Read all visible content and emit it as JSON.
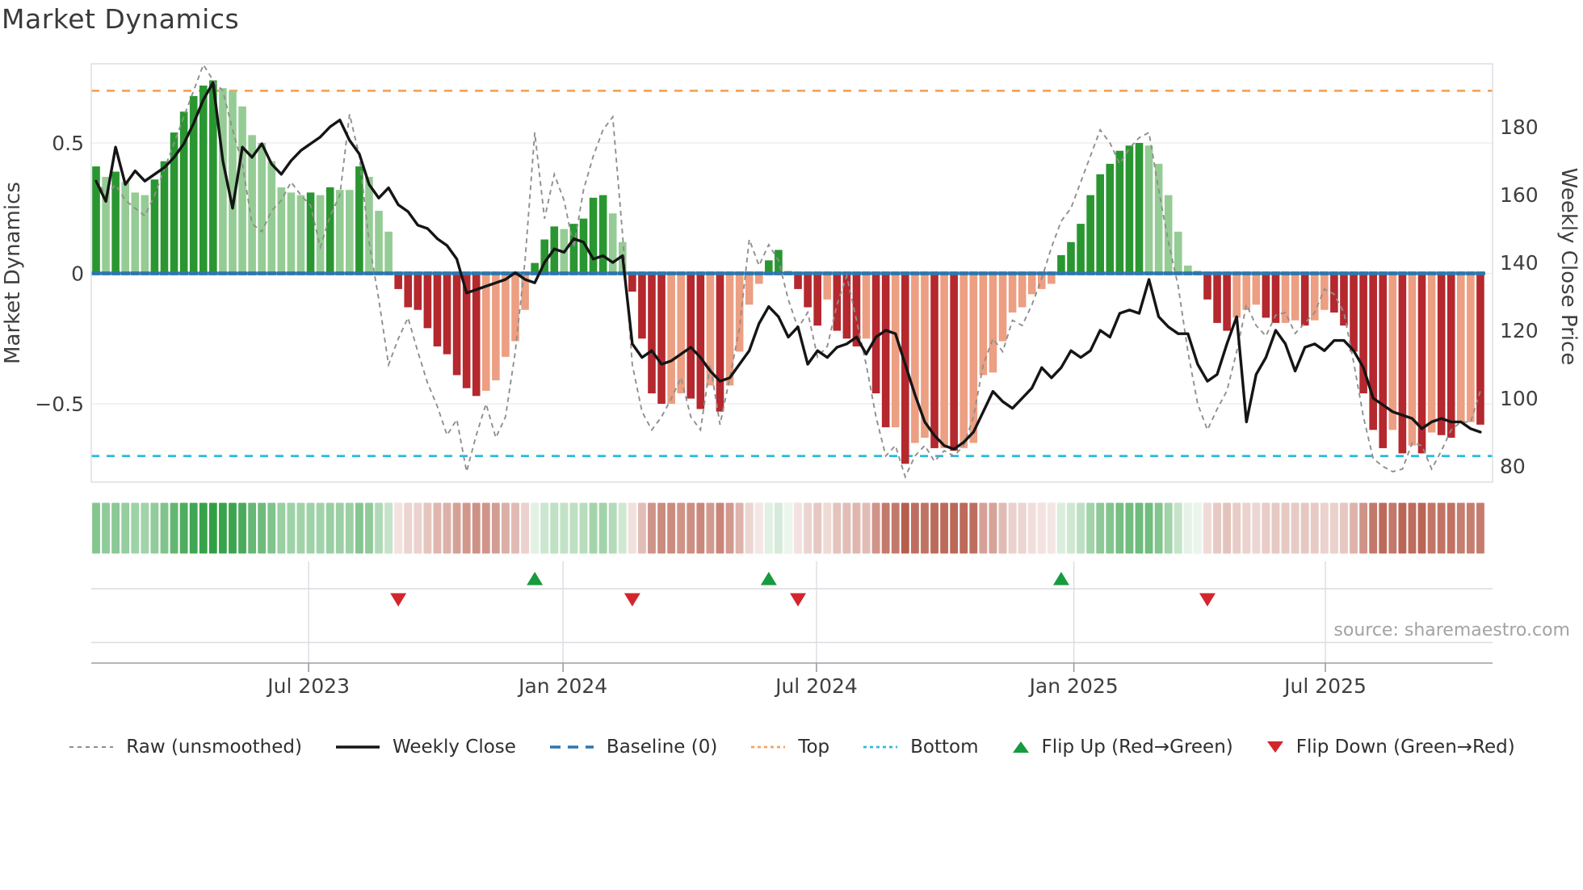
{
  "title": "Market Dynamics",
  "source_text": "source: sharemaestro.com",
  "legend": {
    "items": [
      {
        "label": "Raw (unsmoothed)"
      },
      {
        "label": "Weekly Close"
      },
      {
        "label": "Baseline (0)"
      },
      {
        "label": "Top"
      },
      {
        "label": "Bottom"
      },
      {
        "label": "Flip Up (Red→Green)"
      },
      {
        "label": "Flip Down (Green→Red)"
      }
    ]
  },
  "colors": {
    "bar_green_dark": "#2a9631",
    "bar_green_light": "#95cc95",
    "bar_red_dark": "#b4282e",
    "bar_red_light": "#ec9f82",
    "close_line": "#151515",
    "raw_line": "#8f8f8f",
    "baseline": "#2f76ac",
    "top_line": "#f2a55e",
    "bottom_line": "#2bbcdc",
    "flip_up": "#189a3e",
    "flip_down": "#d2262c",
    "grid": "#e9e9f0",
    "spine": "#dcdce4",
    "panel_grid": "#dadae0",
    "panel_axis": "#9d9da4",
    "tick_text": "#3f3f3f",
    "heat_pos": "#2f9e43",
    "heat_pos_base": "#edf6ed",
    "heat_neg": "#b55a49",
    "heat_neg_base": "#f8eeec"
  },
  "chart_data": {
    "type": "bar",
    "title": "Market Dynamics",
    "ylabel_left": "Market Dynamics",
    "ylabel_right": "Weekly Close Price",
    "ylim_left": [
      -0.8,
      0.8
    ],
    "left_ticks": [
      {
        "v": 0.5,
        "label": "0.5"
      },
      {
        "v": 0.0,
        "label": "0"
      },
      {
        "v": -0.5,
        "label": "−0.5"
      }
    ],
    "right_ticks": [
      {
        "p": 180,
        "label": "180"
      },
      {
        "p": 160,
        "label": "160"
      },
      {
        "p": 140,
        "label": "140"
      },
      {
        "p": 120,
        "label": "120"
      },
      {
        "p": 100,
        "label": "100"
      },
      {
        "p": 80,
        "label": "80"
      }
    ],
    "x_ticks": [
      {
        "label": "Jul 2023",
        "week": 21.8
      },
      {
        "label": "Jan 2024",
        "week": 47.9
      },
      {
        "label": "Jul 2024",
        "week": 73.9
      },
      {
        "label": "Jan 2025",
        "week": 100.3
      },
      {
        "label": "Jul 2025",
        "week": 126.1
      }
    ],
    "thresholds": {
      "baseline": 0,
      "top": 0.7,
      "bottom": -0.7
    },
    "flips": {
      "up_weeks": [
        45,
        69,
        99
      ],
      "down_weeks": [
        31,
        55,
        72,
        114
      ]
    },
    "series": [
      {
        "name": "Market Dynamics (smoothed bars)",
        "values": [
          0.41,
          0.37,
          0.39,
          0.35,
          0.31,
          0.3,
          0.36,
          0.43,
          0.54,
          0.62,
          0.68,
          0.72,
          0.74,
          0.71,
          0.7,
          0.64,
          0.53,
          0.5,
          0.43,
          0.33,
          0.31,
          0.3,
          0.31,
          0.3,
          0.33,
          0.32,
          0.32,
          0.41,
          0.37,
          0.24,
          0.16,
          -0.06,
          -0.13,
          -0.14,
          -0.21,
          -0.28,
          -0.31,
          -0.39,
          -0.44,
          -0.47,
          -0.45,
          -0.41,
          -0.32,
          -0.26,
          -0.14,
          0.04,
          0.13,
          0.18,
          0.17,
          0.19,
          0.21,
          0.29,
          0.3,
          0.23,
          0.12,
          -0.07,
          -0.25,
          -0.46,
          -0.5,
          -0.5,
          -0.46,
          -0.48,
          -0.52,
          -0.43,
          -0.53,
          -0.43,
          -0.3,
          -0.12,
          -0.04,
          0.05,
          0.09,
          0.01,
          -0.06,
          -0.13,
          -0.2,
          -0.1,
          -0.22,
          -0.25,
          -0.28,
          -0.25,
          -0.46,
          -0.59,
          -0.59,
          -0.73,
          -0.65,
          -0.63,
          -0.67,
          -0.67,
          -0.68,
          -0.67,
          -0.65,
          -0.39,
          -0.38,
          -0.26,
          -0.15,
          -0.13,
          -0.08,
          -0.06,
          -0.04,
          0.07,
          0.12,
          0.19,
          0.3,
          0.38,
          0.42,
          0.47,
          0.49,
          0.5,
          0.49,
          0.42,
          0.3,
          0.16,
          0.03,
          0.01,
          -0.1,
          -0.19,
          -0.22,
          -0.17,
          -0.14,
          -0.12,
          -0.17,
          -0.19,
          -0.19,
          -0.18,
          -0.2,
          -0.18,
          -0.14,
          -0.15,
          -0.2,
          -0.3,
          -0.46,
          -0.6,
          -0.67,
          -0.6,
          -0.69,
          -0.66,
          -0.69,
          -0.61,
          -0.62,
          -0.63,
          -0.57,
          -0.57,
          -0.58
        ]
      },
      {
        "name": "Raw (unsmoothed)",
        "values": [
          0.36,
          0.3,
          0.34,
          0.28,
          0.25,
          0.22,
          0.3,
          0.4,
          0.5,
          0.6,
          0.7,
          0.8,
          0.74,
          0.7,
          0.55,
          0.42,
          0.19,
          0.16,
          0.24,
          0.28,
          0.35,
          0.3,
          0.26,
          0.1,
          0.22,
          0.3,
          0.61,
          0.45,
          0.12,
          -0.1,
          -0.35,
          -0.25,
          -0.17,
          -0.3,
          -0.42,
          -0.51,
          -0.62,
          -0.56,
          -0.76,
          -0.62,
          -0.5,
          -0.63,
          -0.55,
          -0.3,
          0.05,
          0.54,
          0.21,
          0.38,
          0.28,
          0.1,
          0.32,
          0.45,
          0.55,
          0.6,
          0.15,
          -0.35,
          -0.53,
          -0.6,
          -0.55,
          -0.48,
          -0.4,
          -0.55,
          -0.6,
          -0.35,
          -0.58,
          -0.4,
          -0.21,
          0.13,
          0.03,
          0.11,
          0.05,
          -0.1,
          -0.21,
          -0.15,
          -0.32,
          -0.28,
          -0.12,
          -0.01,
          -0.18,
          -0.35,
          -0.55,
          -0.7,
          -0.66,
          -0.78,
          -0.7,
          -0.66,
          -0.72,
          -0.68,
          -0.7,
          -0.66,
          -0.55,
          -0.35,
          -0.25,
          -0.3,
          -0.18,
          -0.2,
          -0.12,
          -0.02,
          0.1,
          0.2,
          0.25,
          0.35,
          0.45,
          0.55,
          0.5,
          0.42,
          0.48,
          0.52,
          0.54,
          0.32,
          0.12,
          -0.05,
          -0.3,
          -0.5,
          -0.6,
          -0.52,
          -0.45,
          -0.3,
          -0.12,
          -0.2,
          -0.24,
          -0.16,
          -0.15,
          -0.23,
          -0.19,
          -0.15,
          -0.06,
          -0.08,
          -0.15,
          -0.34,
          -0.55,
          -0.71,
          -0.74,
          -0.76,
          -0.75,
          -0.65,
          -0.66,
          -0.75,
          -0.68,
          -0.6,
          -0.57,
          -0.57,
          -0.45
        ]
      },
      {
        "name": "Weekly Close",
        "axis": "right",
        "values": [
          164,
          158,
          174,
          163,
          167,
          164,
          166,
          168,
          171,
          175,
          181,
          188,
          193,
          170,
          156,
          174,
          171,
          175,
          169,
          166,
          170,
          173,
          175,
          177,
          180,
          182,
          176,
          172,
          163,
          159,
          162,
          157,
          155,
          151,
          150,
          147,
          145,
          141,
          131,
          132,
          133,
          134,
          135,
          137,
          135,
          134,
          140,
          144,
          143,
          147,
          146,
          141,
          142,
          140,
          142,
          116,
          112,
          114,
          110,
          111,
          113,
          115,
          112,
          108,
          105,
          106,
          110,
          114,
          122,
          127,
          124,
          118,
          121,
          110,
          114,
          112,
          115,
          116,
          118,
          113,
          118,
          120,
          119,
          110,
          101,
          93,
          89,
          86,
          85,
          87,
          90,
          96,
          102,
          99,
          97,
          100,
          103,
          109,
          106,
          109,
          114,
          112,
          114,
          120,
          118,
          125,
          126,
          125,
          135,
          124,
          121,
          119,
          119,
          110,
          105,
          107,
          116,
          124,
          93,
          107,
          112,
          120,
          116,
          108,
          115,
          116,
          114,
          117,
          117,
          114,
          109,
          100,
          98,
          96,
          95,
          94,
          91,
          93,
          94,
          93,
          93,
          91,
          90
        ]
      }
    ],
    "heatmap": "same weekly values rendered as color strip (green positive / red negative, intensity = magnitude)"
  }
}
